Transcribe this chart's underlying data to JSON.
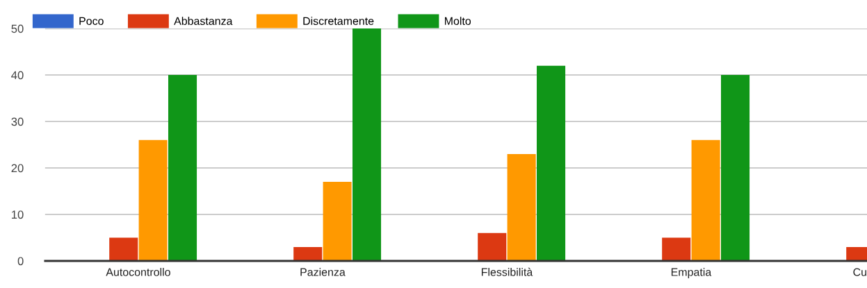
{
  "chart_data": {
    "type": "bar",
    "categories": [
      "Autocontrollo",
      "Pazienza",
      "Flessibilità",
      "Empatia",
      "Cu"
    ],
    "series": [
      {
        "name": "Poco",
        "color": "#3366cc",
        "values": [
          0,
          0,
          0,
          0,
          0
        ]
      },
      {
        "name": "Abbastanza",
        "color": "#dc3912",
        "values": [
          5,
          3,
          6,
          5,
          3
        ]
      },
      {
        "name": "Discretamente",
        "color": "#ff9900",
        "values": [
          26,
          17,
          23,
          26,
          null
        ]
      },
      {
        "name": "Molto",
        "color": "#109618",
        "values": [
          40,
          50,
          42,
          40,
          null
        ]
      }
    ],
    "ylim": [
      0,
      50
    ],
    "yticks": [
      0,
      10,
      20,
      30,
      40,
      50
    ],
    "grid": "y",
    "legend": "top left"
  }
}
